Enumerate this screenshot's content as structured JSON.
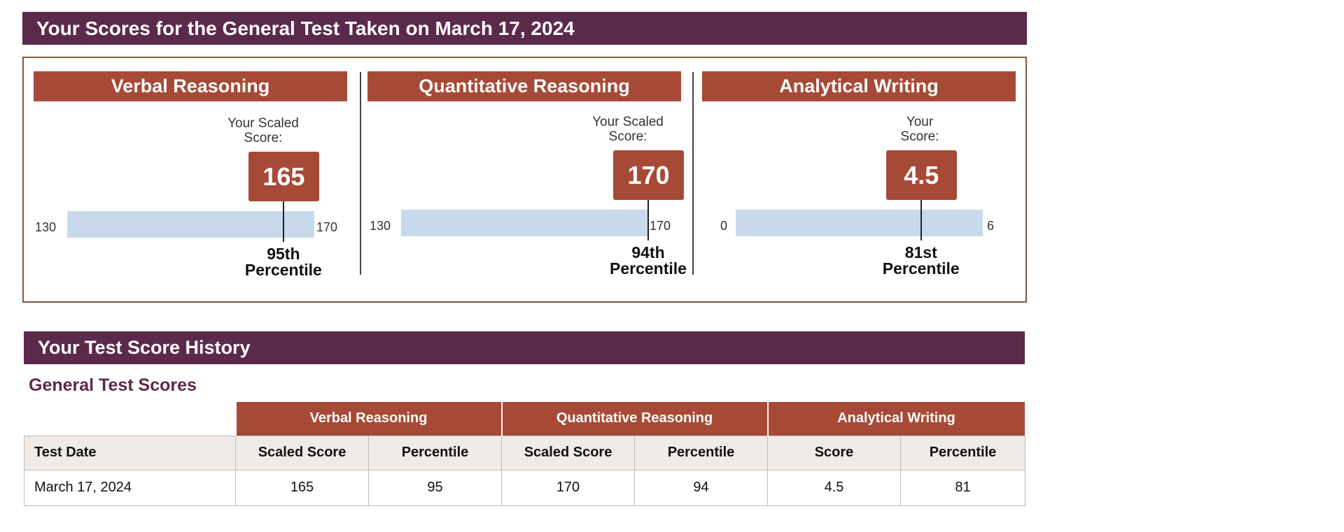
{
  "header": {
    "title": "Your Scores for the General Test Taken on March 17, 2024"
  },
  "sections": [
    {
      "title": "Verbal Reasoning",
      "score_caption": "Your Scaled Score:",
      "score": "165",
      "score_value": 165,
      "min": 130,
      "max": 170,
      "min_label": "130",
      "max_label": "170",
      "percentile": "95th",
      "percentile_suffix": "Percentile"
    },
    {
      "title": "Quantitative Reasoning",
      "score_caption": "Your Scaled Score:",
      "score": "170",
      "score_value": 170,
      "min": 130,
      "max": 170,
      "min_label": "130",
      "max_label": "170",
      "percentile": "94th",
      "percentile_suffix": "Percentile"
    },
    {
      "title": "Analytical Writing",
      "score_caption": "Your Score:",
      "score": "4.5",
      "score_value": 4.5,
      "min": 0,
      "max": 6,
      "min_label": "0",
      "max_label": "6",
      "percentile": "81st",
      "percentile_suffix": "Percentile"
    }
  ],
  "history": {
    "title": "Your Test Score History",
    "subtitle": "General Test Scores",
    "groups": [
      "Verbal Reasoning",
      "Quantitative Reasoning",
      "Analytical Writing"
    ],
    "columns": [
      "Test Date",
      "Scaled Score",
      "Percentile",
      "Scaled Score",
      "Percentile",
      "Score",
      "Percentile"
    ],
    "rows": [
      [
        "March 17, 2024",
        "165",
        "95",
        "170",
        "94",
        "4.5",
        "81"
      ]
    ]
  },
  "colors": {
    "banner": "#5b2a4b",
    "accent": "#a64a37",
    "bar": "#c9d9ec"
  }
}
